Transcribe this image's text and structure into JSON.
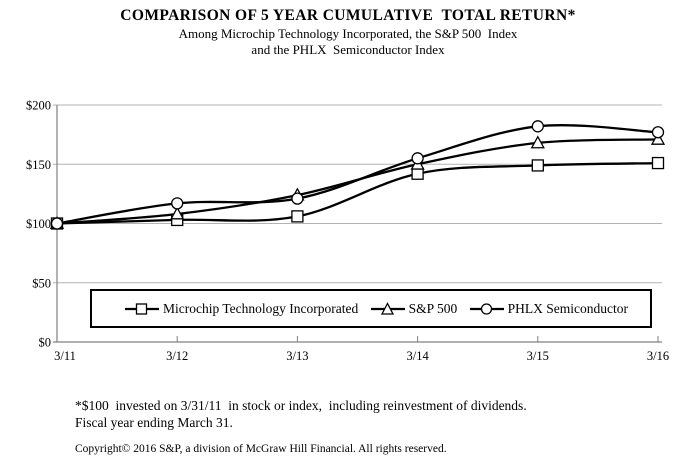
{
  "header": {
    "title": "COMPARISON OF 5 YEAR CUMULATIVE  TOTAL RETURN*",
    "subtitle_line1": "Among Microchip Technology Incorporated, the S&P 500  Index",
    "subtitle_line2": "and the PHLX  Semiconductor Index"
  },
  "chart_data": {
    "type": "line",
    "title": "COMPARISON OF 5 YEAR CUMULATIVE TOTAL RETURN*",
    "categories": [
      "3/11",
      "3/12",
      "3/13",
      "3/14",
      "3/15",
      "3/16"
    ],
    "series": [
      {
        "name": "Microchip Technology Incorporated",
        "marker": "square",
        "values": [
          100,
          103,
          106,
          142,
          149,
          151
        ]
      },
      {
        "name": "S&P 500",
        "marker": "triangle",
        "values": [
          100,
          108,
          124,
          150,
          168,
          171
        ]
      },
      {
        "name": "PHLX Semiconductor",
        "marker": "circle",
        "values": [
          100,
          117,
          121,
          155,
          182,
          177
        ]
      }
    ],
    "xlabel": "",
    "ylabel": "",
    "y_ticks": [
      "$0",
      "$50",
      "$100",
      "$150",
      "$200"
    ],
    "ylim": [
      0,
      200
    ],
    "ytick_step": 50,
    "grid": true,
    "legend_position": "bottom-box",
    "line_color": "#000000",
    "marker_fill": "#ffffff",
    "grid_color": "#b3b3b3",
    "axis_color": "#808080"
  },
  "footnotes": {
    "line1": "*$100  invested on 3/31/11  in stock or index,  including reinvestment of dividends.",
    "line2": "Fiscal year ending March 31.",
    "copyright": "Copyright© 2016 S&P, a division of McGraw Hill Financial. All rights reserved."
  }
}
